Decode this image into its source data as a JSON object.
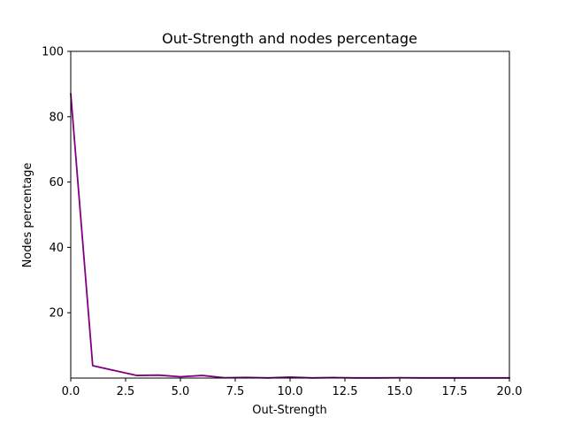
{
  "chart_data": {
    "type": "line",
    "title": "Out-Strength and nodes percentage",
    "xlabel": "Out-Strength",
    "ylabel": "Nodes percentage",
    "xlim": [
      0,
      20
    ],
    "ylim": [
      0,
      100
    ],
    "xticks": [
      0,
      2.5,
      5,
      7.5,
      10,
      12.5,
      15,
      17.5,
      20
    ],
    "xtick_labels": [
      "0.0",
      "2.5",
      "5.0",
      "7.5",
      "10.0",
      "12.5",
      "15.0",
      "17.5",
      "20.0"
    ],
    "yticks": [
      20,
      40,
      60,
      80,
      100
    ],
    "ytick_labels": [
      "20",
      "40",
      "60",
      "80",
      "100"
    ],
    "grid": false,
    "series": [
      {
        "color": "#800080",
        "x": [
          0,
          1,
          2,
          3,
          4,
          5,
          6,
          7,
          8,
          9,
          10,
          11,
          12,
          13,
          14,
          15,
          16,
          17,
          18,
          19,
          20
        ],
        "y": [
          87,
          3.8,
          2.3,
          0.8,
          0.9,
          0.4,
          0.8,
          0.1,
          0.2,
          0.05,
          0.3,
          0.05,
          0.15,
          0.05,
          0.05,
          0.1,
          0.05,
          0.05,
          0.05,
          0.05,
          0.05
        ]
      }
    ]
  }
}
